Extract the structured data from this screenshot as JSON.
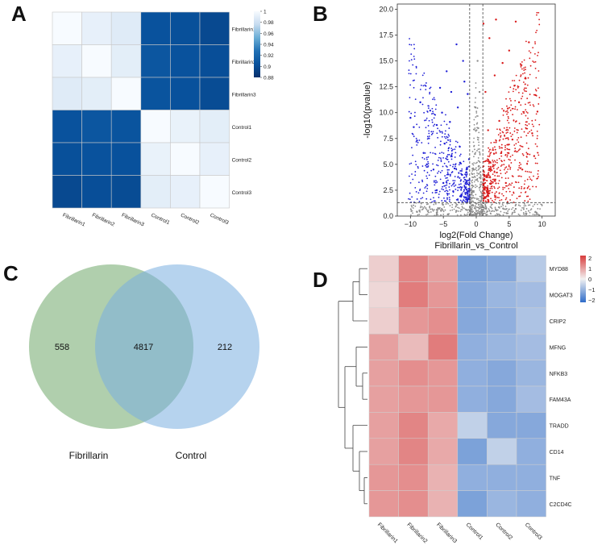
{
  "panels": {
    "a": {
      "letter": "A"
    },
    "b": {
      "letter": "B"
    },
    "c": {
      "letter": "C"
    },
    "d": {
      "letter": "D"
    }
  },
  "chart_data": [
    {
      "panel": "A",
      "type": "heatmap",
      "rows": [
        "Fibrillarin1",
        "Fibrillarin2",
        "Fibrillarin3",
        "Control1",
        "Control2",
        "Control3"
      ],
      "columns": [
        "Fibrillarin1",
        "Fibrillarin2",
        "Fibrillarin3",
        "Control1",
        "Control2",
        "Control3"
      ],
      "values": [
        [
          1.0,
          0.992,
          0.988,
          0.905,
          0.903,
          0.898
        ],
        [
          0.992,
          1.0,
          0.99,
          0.908,
          0.905,
          0.902
        ],
        [
          0.988,
          0.99,
          1.0,
          0.906,
          0.904,
          0.9
        ],
        [
          0.905,
          0.908,
          0.906,
          1.0,
          0.993,
          0.99
        ],
        [
          0.903,
          0.905,
          0.904,
          0.993,
          1.0,
          0.992
        ],
        [
          0.898,
          0.902,
          0.9,
          0.99,
          0.992,
          1.0
        ]
      ],
      "colorbar": {
        "min": 0.88,
        "max": 1.0,
        "ticks": [
          "1",
          "0.98",
          "0.96",
          "0.94",
          "0.92",
          "0.9",
          "0.88"
        ]
      },
      "colors": {
        "low": "#08306b",
        "high": "#f7fbff"
      }
    },
    {
      "panel": "B",
      "type": "scatter",
      "xlabel": "log2(Fold Change)",
      "ylabel": "-log10(pvalue)",
      "subtitle": "Fibrillarin_vs_Control",
      "xlim": [
        -12,
        12
      ],
      "ylim": [
        0,
        20.5
      ],
      "xticks": [
        "−10",
        "−5",
        "0",
        "5",
        "10"
      ],
      "yticks": [
        "0.0",
        "2.5",
        "5.0",
        "7.5",
        "10.0",
        "12.5",
        "15.0",
        "17.5",
        "20.0"
      ],
      "thresholds": {
        "fold_change": [
          -1,
          1
        ],
        "pvalue": 1.3
      },
      "series": [
        {
          "color": "#1f1fd6",
          "points": [
            [
              -10.0,
              9.5
            ],
            [
              -9.5,
              8.6
            ],
            [
              -9.0,
              7.3
            ],
            [
              -8.5,
              11.0
            ],
            [
              -8.0,
              6.1
            ],
            [
              -7.0,
              10.2
            ],
            [
              -6.5,
              4.5
            ],
            [
              -6.0,
              8.8
            ],
            [
              -5.5,
              12.4
            ],
            [
              -5.0,
              3.2
            ],
            [
              -4.5,
              14.0
            ],
            [
              -4.0,
              9.1
            ],
            [
              -3.5,
              2.4
            ],
            [
              -3.0,
              16.6
            ],
            [
              -2.5,
              6.7
            ],
            [
              -2.0,
              15.0
            ],
            [
              -1.6,
              1.8
            ],
            [
              -1.3,
              11.8
            ],
            [
              -1.1,
              5.5
            ],
            [
              -2.2,
              4.0
            ],
            [
              -3.8,
              12.0
            ],
            [
              -6.0,
              2.5
            ],
            [
              -7.5,
              5.0
            ],
            [
              -4.8,
              7.0
            ],
            [
              -2.8,
              10.5
            ],
            [
              -1.8,
              13.0
            ],
            [
              -5.2,
              10.0
            ],
            [
              -3.3,
              4.6
            ]
          ]
        },
        {
          "color": "#d91a1a",
          "points": [
            [
              1.1,
              18.6
            ],
            [
              1.4,
              12.0
            ],
            [
              1.6,
              1.9
            ],
            [
              2.0,
              17.2
            ],
            [
              2.5,
              4.8
            ],
            [
              3.0,
              19.0
            ],
            [
              3.5,
              9.2
            ],
            [
              4.0,
              14.8
            ],
            [
              4.5,
              3.2
            ],
            [
              5.0,
              16.0
            ],
            [
              5.5,
              7.4
            ],
            [
              6.0,
              18.8
            ],
            [
              6.5,
              11.0
            ],
            [
              7.0,
              4.5
            ],
            [
              7.5,
              13.3
            ],
            [
              8.0,
              16.8
            ],
            [
              8.5,
              8.0
            ],
            [
              9.0,
              11.7
            ],
            [
              9.3,
              10.1
            ],
            [
              1.8,
              8.3
            ],
            [
              2.8,
              13.6
            ],
            [
              3.8,
              6.1
            ],
            [
              4.8,
              10.4
            ],
            [
              5.8,
              12.6
            ],
            [
              6.8,
              14.6
            ],
            [
              7.8,
              6.0
            ],
            [
              8.8,
              5.8
            ],
            [
              2.2,
              3.1
            ]
          ]
        },
        {
          "color": "#8c8c8c",
          "points": [
            [
              -0.9,
              0.2
            ],
            [
              -0.6,
              0.4
            ],
            [
              -0.3,
              0.1
            ],
            [
              0.0,
              0.5
            ],
            [
              0.2,
              0.3
            ],
            [
              0.5,
              0.2
            ],
            [
              0.8,
              0.4
            ],
            [
              -0.5,
              1.0
            ],
            [
              0.4,
              1.1
            ],
            [
              -1.5,
              0.6
            ],
            [
              1.5,
              0.7
            ],
            [
              -3.0,
              0.5
            ],
            [
              3.0,
              0.6
            ],
            [
              -6.0,
              0.6
            ],
            [
              6.0,
              0.7
            ],
            [
              -9.0,
              0.4
            ],
            [
              9.0,
              0.4
            ],
            [
              0.1,
              3.5
            ],
            [
              -0.2,
              6.0
            ],
            [
              0.3,
              8.5
            ],
            [
              -0.1,
              10.5
            ],
            [
              0.5,
              12.0
            ],
            [
              -0.4,
              4.5
            ],
            [
              0.2,
              15.0
            ]
          ]
        }
      ]
    },
    {
      "panel": "C",
      "type": "venn",
      "sets": [
        {
          "name": "Fibrillarin",
          "only": "558",
          "color": "#7fb27a"
        },
        {
          "name": "Control",
          "only": "212",
          "color": "#7aaee0"
        }
      ],
      "intersection": "4817"
    },
    {
      "panel": "D",
      "type": "heatmap",
      "rows": [
        "MYD88",
        "MOGAT3",
        "CRIP2",
        "MFNG",
        "NFKB3",
        "FAM43A",
        "TRADD",
        "CD14",
        "TNF",
        "C2CD4C"
      ],
      "columns": [
        "Fibrillarin1",
        "Fibrillarin2",
        "Fibrillarin3",
        "Control1",
        "Control2",
        "Control3"
      ],
      "values": [
        [
          0.4,
          1.2,
          0.9,
          -1.2,
          -1.1,
          -0.6
        ],
        [
          0.3,
          1.3,
          1.0,
          -1.1,
          -0.9,
          -0.8
        ],
        [
          0.4,
          1.0,
          1.1,
          -1.1,
          -1.0,
          -0.7
        ],
        [
          0.9,
          0.6,
          1.3,
          -1.0,
          -0.9,
          -0.8
        ],
        [
          0.9,
          1.1,
          1.0,
          -1.0,
          -1.1,
          -0.9
        ],
        [
          0.9,
          1.0,
          1.0,
          -1.0,
          -1.1,
          -0.8
        ],
        [
          0.9,
          1.2,
          0.8,
          -0.5,
          -1.1,
          -1.1
        ],
        [
          0.9,
          1.2,
          0.8,
          -1.2,
          -0.5,
          -1.0
        ],
        [
          1.0,
          1.1,
          0.7,
          -1.0,
          -1.0,
          -1.0
        ],
        [
          1.0,
          1.1,
          0.7,
          -1.2,
          -0.9,
          -1.0
        ]
      ],
      "colorbar": {
        "min": -2,
        "max": 2,
        "ticks": [
          "2",
          "1",
          "0",
          "−1",
          "−2"
        ]
      },
      "colors": {
        "low": "#2e6cc9",
        "mid": "#f2f2f2",
        "high": "#d83c3c"
      }
    }
  ]
}
